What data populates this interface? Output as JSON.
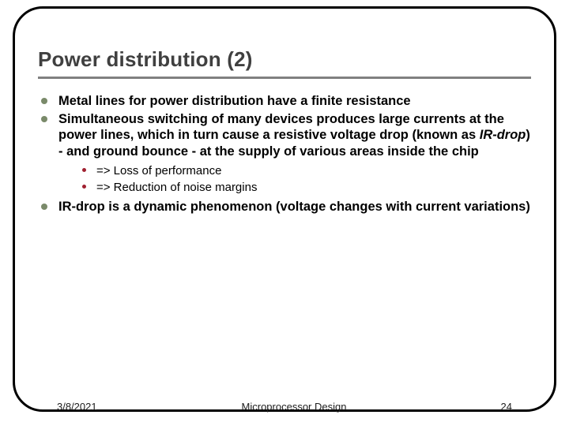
{
  "title": "Power distribution (2)",
  "bullets": {
    "b1": "Metal lines for power distribution have a finite resistance",
    "b2_pre": "Simultaneous switching of many devices produces large currents at the power lines, which in turn cause a resistive voltage drop (known as ",
    "b2_italic": "IR-drop",
    "b2_post": ") - and ground bounce - at the supply of various areas inside the chip",
    "b2_sub1": "=> Loss of performance",
    "b2_sub2": "=> Reduction of noise margins",
    "b3": "IR-drop is a dynamic phenomenon (voltage changes with current variations)"
  },
  "footer": {
    "date": "3/8/2021",
    "title": "Microprocessor Design",
    "page": "24"
  },
  "colors": {
    "title_text": "#404040",
    "underline": "#808080",
    "bullet_l1": "#7a8a6a",
    "bullet_l2": "#a02030",
    "frame": "#000000"
  }
}
